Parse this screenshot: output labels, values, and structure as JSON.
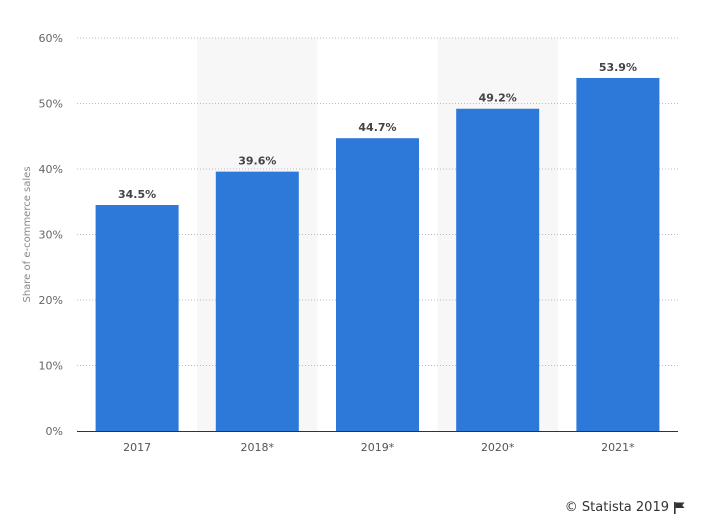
{
  "chart_data": {
    "type": "bar",
    "categories": [
      "2017",
      "2018*",
      "2019*",
      "2020*",
      "2021*"
    ],
    "values": [
      34.5,
      39.6,
      44.7,
      49.2,
      53.9
    ],
    "value_labels": [
      "34.5%",
      "39.6%",
      "44.7%",
      "49.2%",
      "53.9%"
    ],
    "ylabel": "Share of e-commerce sales",
    "ylim": [
      0,
      60
    ],
    "yticks": [
      0,
      10,
      20,
      30,
      40,
      50,
      60
    ],
    "ytick_labels": [
      "0%",
      "10%",
      "20%",
      "30%",
      "40%",
      "50%",
      "60%"
    ],
    "grid": true,
    "bar_color": "#2c79d9"
  },
  "credit": "© Statista 2019"
}
